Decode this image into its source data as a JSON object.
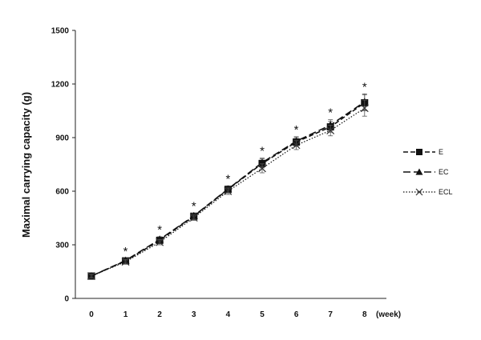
{
  "chart_data": {
    "type": "line",
    "title": "",
    "xlabel": "(week)",
    "ylabel": "Maximal carrying capacity (g)",
    "x": [
      0,
      1,
      2,
      3,
      4,
      5,
      6,
      7,
      8
    ],
    "x_tick_labels": [
      "0",
      "1",
      "2",
      "3",
      "4",
      "5",
      "6",
      "7",
      "8"
    ],
    "ylim": [
      0,
      1500
    ],
    "y_ticks": [
      0,
      300,
      600,
      900,
      1200,
      1500
    ],
    "y_tick_labels": [
      "0",
      "300",
      "600",
      "900",
      "1200",
      "1500"
    ],
    "grid": false,
    "legend_position": "right",
    "series": [
      {
        "name": "E",
        "marker": "square",
        "line": "dashed",
        "values": [
          125,
          210,
          325,
          460,
          610,
          755,
          875,
          960,
          1095
        ],
        "error": [
          10,
          12,
          15,
          15,
          18,
          25,
          25,
          30,
          45
        ]
      },
      {
        "name": "EC",
        "marker": "triangle",
        "line": "long-dash",
        "values": [
          125,
          212,
          330,
          462,
          612,
          760,
          880,
          970,
          1100
        ],
        "error": [
          10,
          12,
          15,
          15,
          18,
          25,
          25,
          30,
          45
        ]
      },
      {
        "name": "ECL",
        "marker": "x",
        "line": "dotted",
        "values": [
          125,
          205,
          315,
          452,
          600,
          728,
          858,
          940,
          1065
        ],
        "error": [
          10,
          12,
          15,
          15,
          18,
          25,
          25,
          30,
          45
        ]
      }
    ],
    "annotations": [
      {
        "text": "*",
        "x": 1
      },
      {
        "text": "*",
        "x": 2
      },
      {
        "text": "*",
        "x": 3
      },
      {
        "text": "*",
        "x": 4
      },
      {
        "text": "*",
        "x": 5
      },
      {
        "text": "*",
        "x": 6
      },
      {
        "text": "*",
        "x": 7
      },
      {
        "text": "*",
        "x": 8
      }
    ]
  }
}
